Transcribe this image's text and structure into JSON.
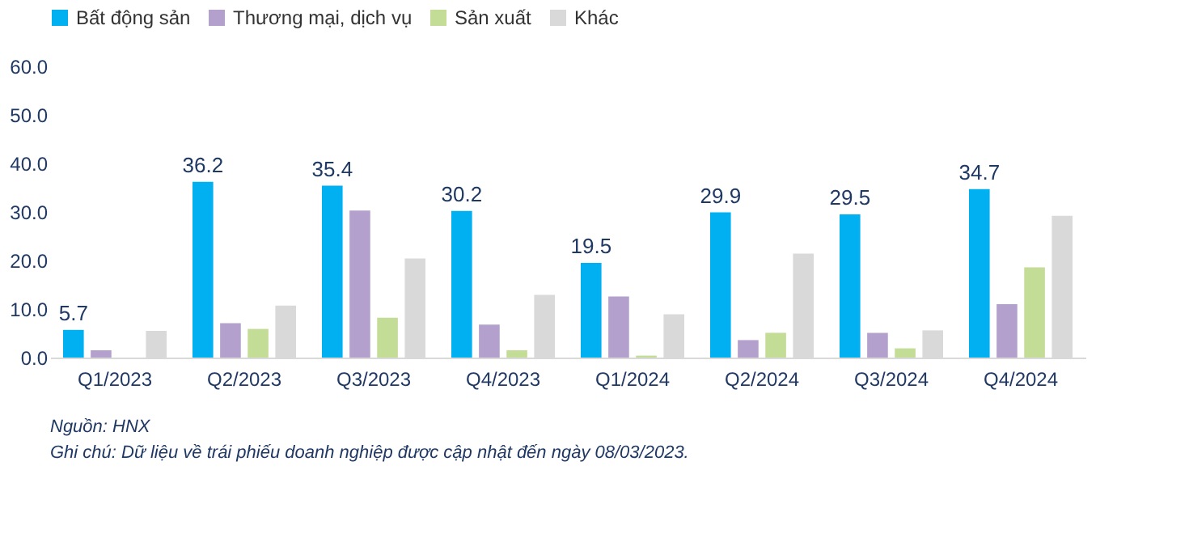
{
  "chart_data": {
    "type": "bar",
    "categories": [
      "Q1/2023",
      "Q2/2023",
      "Q3/2023",
      "Q4/2023",
      "Q1/2024",
      "Q2/2024",
      "Q3/2024",
      "Q4/2024"
    ],
    "series": [
      {
        "name": "Bất động sản",
        "color": "#00b0f0",
        "values": [
          5.7,
          36.2,
          35.4,
          30.2,
          19.5,
          29.9,
          29.5,
          34.7
        ],
        "value_labels": [
          "5.7",
          "36.2",
          "35.4",
          "30.2",
          "19.5",
          "29.9",
          "29.5",
          "34.7"
        ]
      },
      {
        "name": "Thương mại, dịch vụ",
        "color": "#b4a0cc",
        "values": [
          1.5,
          7.1,
          30.3,
          6.8,
          12.6,
          3.6,
          5.1,
          11.0
        ]
      },
      {
        "name": "Sản xuất",
        "color": "#c3dc96",
        "values": [
          0,
          5.9,
          8.2,
          1.5,
          0.4,
          5.1,
          1.9,
          18.6
        ]
      },
      {
        "name": "Khác",
        "color": "#d9d9d9",
        "values": [
          5.5,
          10.7,
          20.4,
          12.9,
          8.9,
          21.4,
          5.6,
          29.2
        ]
      }
    ],
    "ylim": [
      0,
      60
    ],
    "yticks": [
      {
        "value": 0,
        "label": "0.0"
      },
      {
        "value": 10,
        "label": "10.0"
      },
      {
        "value": 20,
        "label": "20.0"
      },
      {
        "value": 30,
        "label": "30.0"
      },
      {
        "value": 40,
        "label": "40.0"
      },
      {
        "value": 50,
        "label": "50.0"
      },
      {
        "value": 60,
        "label": "60.0"
      }
    ],
    "grid": false,
    "legend": "top",
    "annotations": [
      "Nguồn: HNX",
      "Ghi chú: Dữ liệu về trái phiếu doanh nghiệp được cập nhật đến ngày 08/03/2023."
    ]
  }
}
